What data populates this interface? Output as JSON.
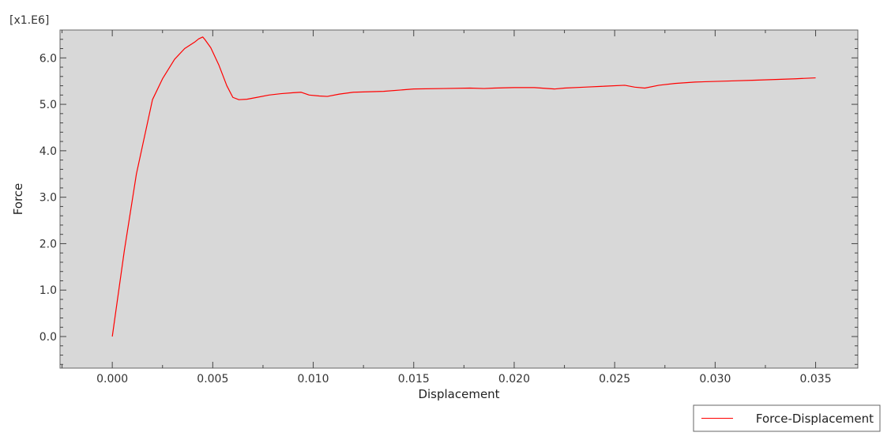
{
  "chart_data": {
    "type": "line",
    "xlabel": "Displacement",
    "ylabel": "Force",
    "y_multiplier_label": "[x1.E6]",
    "xlim": [
      -0.0026,
      0.0371
    ],
    "ylim": [
      -0.68,
      6.6
    ],
    "x_ticks": [
      0.0,
      0.005,
      0.01,
      0.015,
      0.02,
      0.025,
      0.03,
      0.035
    ],
    "x_tick_labels": [
      "0.000",
      "0.005",
      "0.010",
      "0.015",
      "0.020",
      "0.025",
      "0.030",
      "0.035"
    ],
    "y_ticks": [
      0,
      1,
      2,
      3,
      4,
      5,
      6
    ],
    "y_tick_labels": [
      "0.0",
      "1.0",
      "2.0",
      "3.0",
      "4.0",
      "5.0",
      "6.0"
    ],
    "grid": false,
    "legend_position": "bottom-right",
    "series": [
      {
        "name": "Force-Displacement",
        "color": "#ff0000",
        "x": [
          0.0,
          0.0006,
          0.0012,
          0.0017,
          0.002,
          0.0025,
          0.0031,
          0.0036,
          0.0041,
          0.0043,
          0.0045,
          0.0046,
          0.0049,
          0.0053,
          0.0057,
          0.006,
          0.0063,
          0.0067,
          0.0072,
          0.0078,
          0.0084,
          0.009,
          0.0094,
          0.0098,
          0.0103,
          0.0107,
          0.0113,
          0.012,
          0.0135,
          0.015,
          0.0165,
          0.0178,
          0.0185,
          0.019,
          0.02,
          0.021,
          0.022,
          0.0225,
          0.0235,
          0.0245,
          0.0255,
          0.026,
          0.0265,
          0.0272,
          0.028,
          0.029,
          0.0305,
          0.032,
          0.034,
          0.035
        ],
        "y": [
          0.0,
          1.85,
          3.5,
          4.5,
          5.1,
          5.55,
          5.97,
          6.2,
          6.34,
          6.41,
          6.45,
          6.4,
          6.22,
          5.85,
          5.4,
          5.15,
          5.1,
          5.11,
          5.15,
          5.2,
          5.23,
          5.25,
          5.26,
          5.2,
          5.18,
          5.17,
          5.22,
          5.26,
          5.28,
          5.33,
          5.34,
          5.35,
          5.34,
          5.35,
          5.36,
          5.36,
          5.33,
          5.35,
          5.37,
          5.39,
          5.41,
          5.37,
          5.35,
          5.41,
          5.45,
          5.48,
          5.5,
          5.52,
          5.55,
          5.57
        ]
      }
    ]
  }
}
